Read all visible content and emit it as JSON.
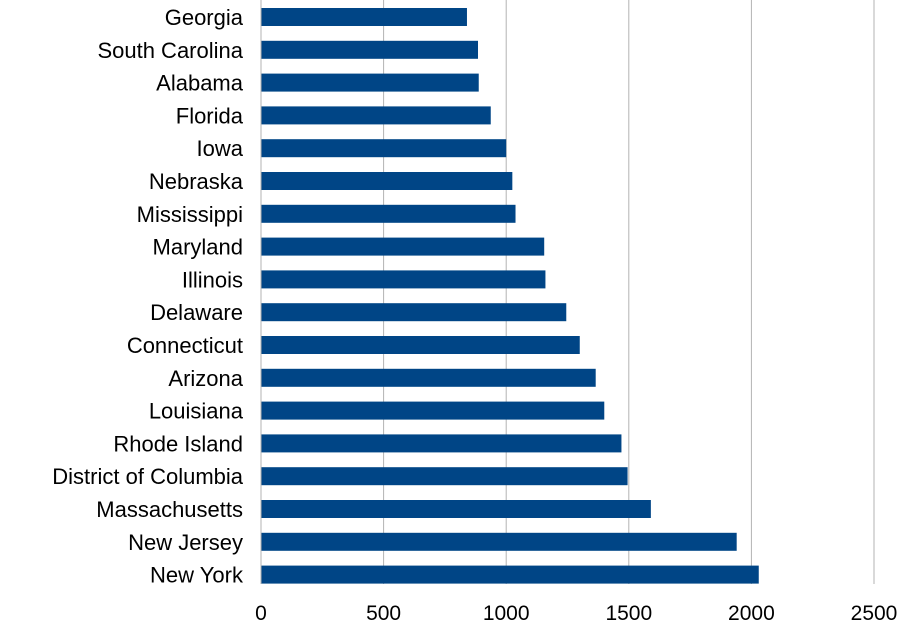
{
  "chart_data": {
    "type": "bar",
    "orientation": "horizontal",
    "title": "",
    "xlabel": "",
    "ylabel": "",
    "categories": [
      "Georgia",
      "South Carolina",
      "Alabama",
      "Florida",
      "Iowa",
      "Nebraska",
      "Mississippi",
      "Maryland",
      "Illinois",
      "Delaware",
      "Connecticut",
      "Arizona",
      "Louisiana",
      "Rhode Island",
      "District of Columbia",
      "Massachusetts",
      "New Jersey",
      "New York"
    ],
    "values": [
      840,
      885,
      888,
      937,
      1000,
      1025,
      1038,
      1155,
      1160,
      1245,
      1300,
      1365,
      1400,
      1470,
      1495,
      1590,
      1940,
      2030
    ],
    "xlim": [
      0,
      2500
    ],
    "xticks": [
      "0",
      "500",
      "1000",
      "1500",
      "2000",
      "2500"
    ],
    "grid": "vertical",
    "legend": "none",
    "bar_color": "#004586",
    "grid_color": "#b3b3b3"
  }
}
